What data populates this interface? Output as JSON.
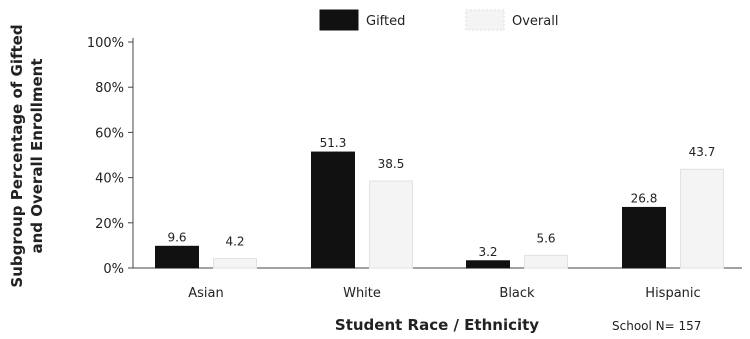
{
  "chart_data": {
    "type": "bar",
    "title": "",
    "xlabel": "Student Race / Ethnicity",
    "ylabel_lines": [
      "Subgroup Percentage of Gifted",
      "and Overall Enrollment"
    ],
    "note": "School N= 157",
    "categories": [
      "Asian",
      "White",
      "Black",
      "Hispanic"
    ],
    "series": [
      {
        "name": "Gifted",
        "values": [
          9.6,
          51.3,
          3.2,
          26.8
        ],
        "value_labels": [
          "9.6",
          "51.3",
          "3.2",
          "26.8"
        ],
        "color": "#111111"
      },
      {
        "name": "Overall",
        "values": [
          4.2,
          38.5,
          5.6,
          43.7
        ],
        "value_labels": [
          "4.2",
          "38.5",
          "5.6",
          "43.7"
        ],
        "color": "#f4f4f4"
      }
    ],
    "ylim": [
      0,
      100
    ],
    "yticks": [
      0,
      20,
      40,
      60,
      80,
      100
    ],
    "ytick_labels": [
      "0%",
      "20%",
      "40%",
      "60%",
      "80%",
      "100%"
    ],
    "grid": false,
    "legend_position": "top-center"
  }
}
